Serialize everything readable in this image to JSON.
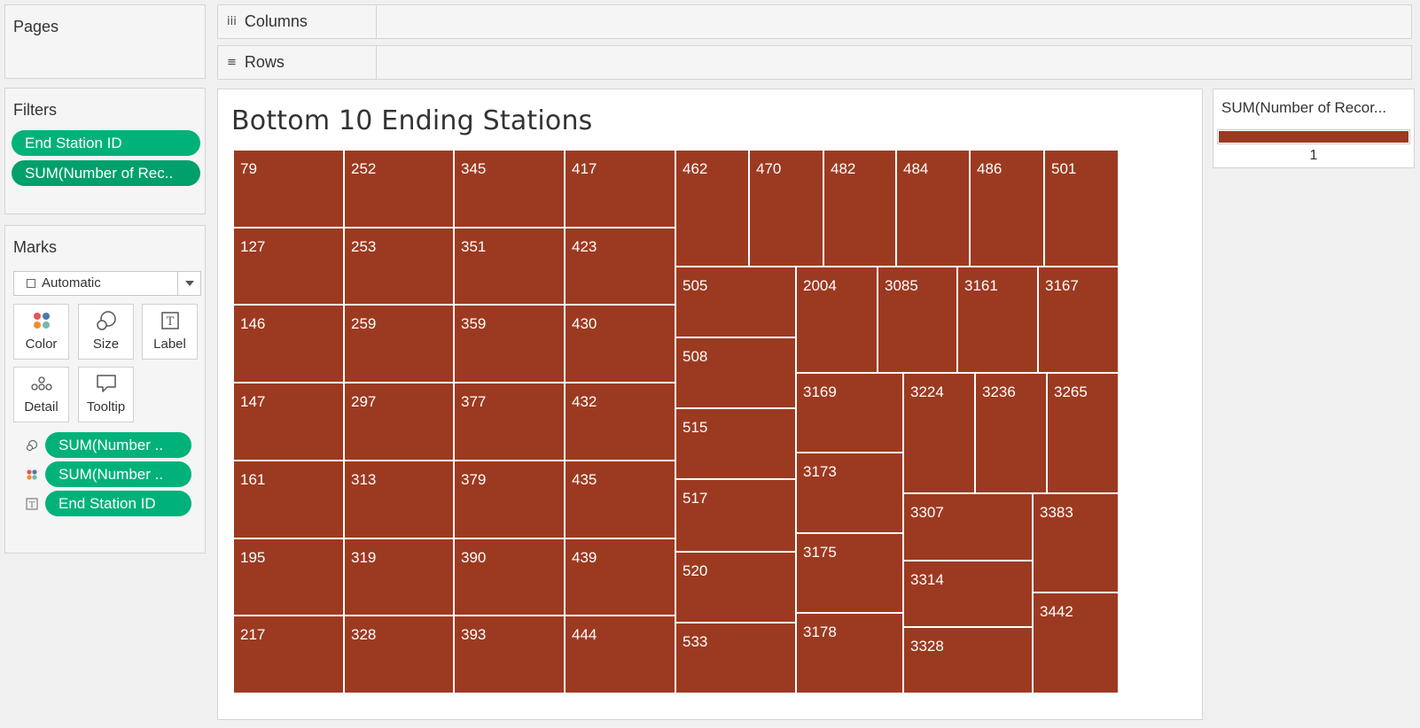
{
  "pages": {
    "title": "Pages"
  },
  "columns": {
    "label": "Columns",
    "icon": "iii"
  },
  "rows": {
    "label": "Rows",
    "icon": "≡"
  },
  "filters": {
    "title": "Filters",
    "pills": [
      "End Station ID",
      "SUM(Number of Rec.."
    ]
  },
  "marks": {
    "title": "Marks",
    "mark_type": "Automatic",
    "buttons": {
      "color": "Color",
      "size": "Size",
      "label": "Label",
      "detail": "Detail",
      "tooltip": "Tooltip"
    },
    "label_icon": "T",
    "fields": [
      "SUM(Number ..",
      "SUM(Number ..",
      "End Station ID"
    ]
  },
  "viz": {
    "title": "Bottom 10 Ending Stations",
    "color": "#9c3a21"
  },
  "legend": {
    "title": "SUM(Number of Recor...",
    "value": "1",
    "color": "#9c3a21"
  },
  "chart_data": {
    "type": "treemap",
    "title": "Bottom 10 Ending Stations",
    "measure": "SUM(Number of Records)",
    "labels": [
      "79",
      "127",
      "146",
      "147",
      "161",
      "195",
      "217",
      "252",
      "253",
      "259",
      "297",
      "313",
      "319",
      "328",
      "345",
      "351",
      "359",
      "377",
      "379",
      "390",
      "393",
      "417",
      "423",
      "430",
      "432",
      "435",
      "439",
      "444",
      "462",
      "470",
      "482",
      "484",
      "486",
      "501",
      "505",
      "508",
      "515",
      "517",
      "520",
      "533",
      "2004",
      "3085",
      "3161",
      "3167",
      "3169",
      "3173",
      "3175",
      "3178",
      "3224",
      "3236",
      "3265",
      "3307",
      "3314",
      "3328",
      "3383",
      "3442"
    ],
    "values": [
      1,
      1,
      1,
      1,
      1,
      1,
      1,
      1,
      1,
      1,
      1,
      1,
      1,
      1,
      1,
      1,
      1,
      1,
      1,
      1,
      1,
      1,
      1,
      1,
      1,
      1,
      1,
      1,
      1,
      1,
      1,
      1,
      1,
      1,
      1,
      1,
      1,
      1,
      1,
      1,
      1,
      1,
      1,
      1,
      1,
      1,
      1,
      1,
      1,
      1,
      1,
      1,
      1,
      1,
      1,
      1
    ]
  }
}
